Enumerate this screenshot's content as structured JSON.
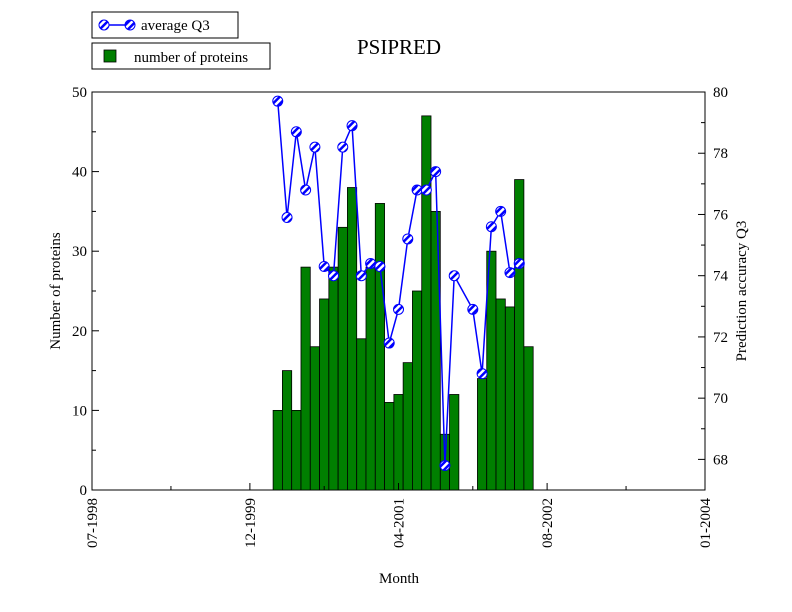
{
  "chart_data": {
    "type": "bar",
    "title": "PSIPRED",
    "xlabel": "Month",
    "ylabel": "Number of proteins",
    "y2label": "Prediction accuracy Q3",
    "xlim": [
      0,
      66
    ],
    "ylim": [
      0,
      50
    ],
    "y2lim": [
      67,
      80
    ],
    "x_ticks": [
      {
        "value": 0,
        "label": "07-1998"
      },
      {
        "value": 17,
        "label": "12-1999"
      },
      {
        "value": 33,
        "label": "04-2001"
      },
      {
        "value": 49,
        "label": "08-2002"
      },
      {
        "value": 66,
        "label": "01-2004"
      }
    ],
    "y_ticks": [
      0,
      10,
      20,
      30,
      40,
      50
    ],
    "y2_ticks": [
      68,
      70,
      72,
      74,
      76,
      78,
      80
    ],
    "legend_position": "top-left",
    "grid": false,
    "colors": {
      "bars": "#007f00",
      "line": "#0000ff",
      "marker_stripe": "#0000ff"
    },
    "series": [
      {
        "name": "number of proteins",
        "type": "bar",
        "axis": "left",
        "x": [
          20,
          21,
          22,
          23,
          24,
          25,
          26,
          27,
          28,
          29,
          30,
          31,
          32,
          33,
          34,
          35,
          36,
          37,
          38,
          39,
          40,
          41,
          42,
          43,
          44,
          45,
          46,
          47,
          48,
          49
        ],
        "values": [
          10,
          15,
          10,
          28,
          18,
          24,
          28,
          33,
          38,
          19,
          28,
          36,
          11,
          12,
          16,
          25,
          47,
          35,
          7,
          12,
          null,
          null,
          14,
          30,
          24,
          23,
          39,
          18,
          null,
          null
        ]
      },
      {
        "name": "average Q3",
        "type": "line",
        "axis": "right",
        "x": [
          20,
          21,
          22,
          23,
          24,
          25,
          26,
          27,
          28,
          29,
          30,
          31,
          32,
          33,
          34,
          35,
          36,
          37,
          38,
          39,
          41,
          42,
          43,
          44,
          45,
          46,
          47
        ],
        "values": [
          79.7,
          75.9,
          78.7,
          76.8,
          78.2,
          74.3,
          74.0,
          78.2,
          78.9,
          74.0,
          74.4,
          74.3,
          71.8,
          72.9,
          75.2,
          76.8,
          76.8,
          77.4,
          67.8,
          74.0,
          72.9,
          70.8,
          75.6,
          76.1,
          74.1,
          74.4,
          null
        ]
      }
    ]
  }
}
